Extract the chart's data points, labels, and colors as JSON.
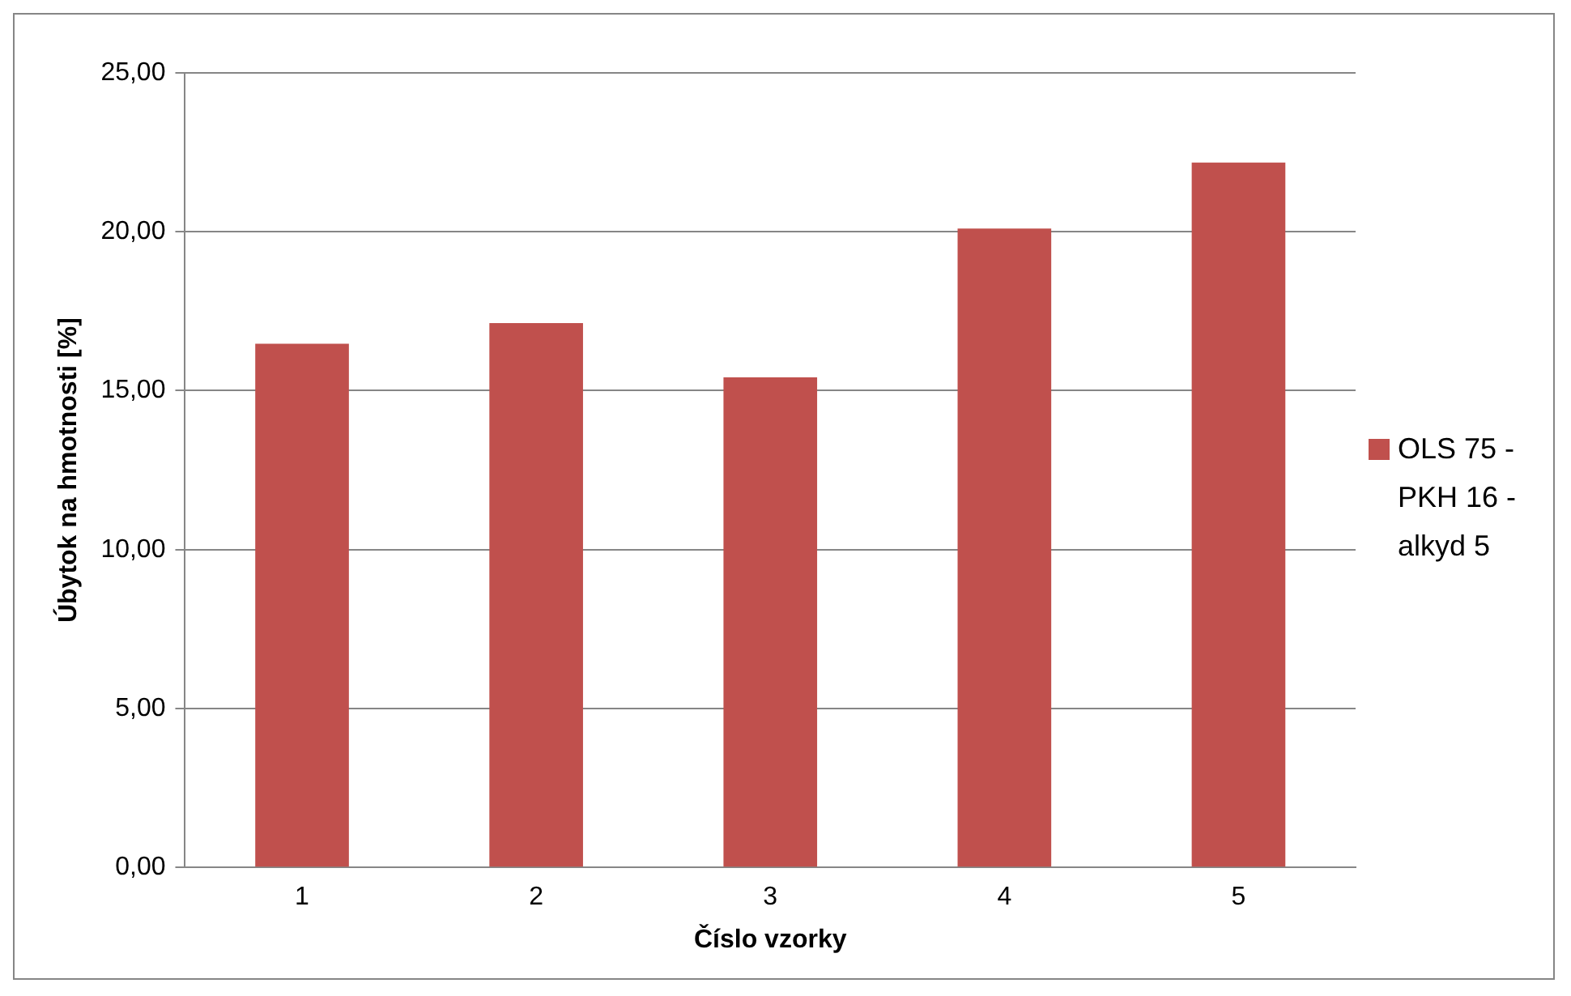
{
  "chart_data": {
    "type": "bar",
    "xlabel": "Číslo vzorky",
    "ylabel": "Úbytok na hmotnosti [%]",
    "categories": [
      "1",
      "2",
      "3",
      "4",
      "5"
    ],
    "series": [
      {
        "name": "OLS 75 - PKH 16 - alkyd 5",
        "color": "#c0504d",
        "values": [
          16.48,
          17.13,
          15.42,
          20.1,
          22.18
        ]
      }
    ],
    "ylim": [
      0,
      25
    ],
    "yticks": [
      {
        "value": 0,
        "label": "0,00"
      },
      {
        "value": 5,
        "label": "5,00"
      },
      {
        "value": 10,
        "label": "10,00"
      },
      {
        "value": 15,
        "label": "15,00"
      },
      {
        "value": 20,
        "label": "20,00"
      },
      {
        "value": 25,
        "label": "25,00"
      }
    ],
    "grid": "y",
    "legend": "right"
  }
}
